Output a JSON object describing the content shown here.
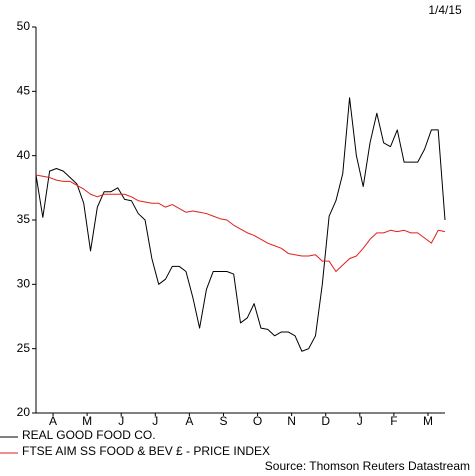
{
  "chart_data": {
    "type": "line",
    "date_label": "1/4/15",
    "source": "Source: Thomson Reuters Datastream",
    "x": [
      0,
      0.2,
      0.4,
      0.6,
      0.8,
      1,
      1.2,
      1.4,
      1.6,
      1.8,
      2,
      2.2,
      2.4,
      2.6,
      2.8,
      3,
      3.2,
      3.4,
      3.6,
      3.8,
      4,
      4.2,
      4.4,
      4.6,
      4.8,
      5,
      5.2,
      5.4,
      5.6,
      5.8,
      6,
      6.2,
      6.4,
      6.6,
      6.8,
      7,
      7.2,
      7.4,
      7.6,
      7.8,
      8,
      8.2,
      8.4,
      8.6,
      8.8,
      9,
      9.2,
      9.4,
      9.6,
      9.8,
      10,
      10.2,
      10.4,
      10.6,
      10.8,
      11,
      11.2,
      11.4,
      11.6,
      11.8,
      12
    ],
    "xlim": [
      0,
      12
    ],
    "xticks": [
      {
        "value": 0.5,
        "label": "A"
      },
      {
        "value": 1.5,
        "label": "M"
      },
      {
        "value": 2.5,
        "label": "J"
      },
      {
        "value": 3.5,
        "label": "J"
      },
      {
        "value": 4.5,
        "label": "A"
      },
      {
        "value": 5.5,
        "label": "S"
      },
      {
        "value": 6.5,
        "label": "O"
      },
      {
        "value": 7.5,
        "label": "N"
      },
      {
        "value": 8.5,
        "label": "D"
      },
      {
        "value": 9.5,
        "label": "J"
      },
      {
        "value": 10.5,
        "label": "F"
      },
      {
        "value": 11.5,
        "label": "M"
      }
    ],
    "ylim": [
      20,
      50
    ],
    "yticks": [
      20,
      25,
      30,
      35,
      40,
      45,
      50
    ],
    "grid": false,
    "series": [
      {
        "name": "REAL GOOD FOOD CO.",
        "color": "#000000",
        "values": [
          38.5,
          35.2,
          38.8,
          39,
          38.8,
          38.3,
          37.8,
          36.3,
          32.6,
          36,
          37.2,
          37.2,
          37.5,
          36.6,
          36.5,
          35.5,
          35,
          32,
          30,
          30.4,
          31.4,
          31.4,
          31,
          29,
          26.6,
          29.6,
          31,
          31,
          31,
          30.8,
          27,
          27.4,
          28.5,
          26.6,
          26.5,
          26,
          26.3,
          26.3,
          26,
          24.8,
          25,
          26,
          30,
          35.3,
          36.5,
          38.6,
          44.5,
          40,
          37.6,
          41,
          43.3,
          41,
          40.7,
          42,
          39.5,
          39.5,
          39.5,
          40.5,
          42,
          42,
          35
        ]
      },
      {
        "name": "FTSE AIM SS FOOD & BEV £ - PRICE INDEX",
        "color": "#e0201c",
        "values": [
          38.5,
          38.4,
          38.3,
          38.1,
          38,
          38,
          37.7,
          37.4,
          37,
          36.8,
          37,
          37,
          37,
          37,
          36.8,
          36.5,
          36.4,
          36.3,
          36.3,
          36,
          36.2,
          35.9,
          35.6,
          35.7,
          35.6,
          35.5,
          35.3,
          35.1,
          35,
          34.6,
          34.3,
          34,
          33.8,
          33.5,
          33.2,
          33,
          32.8,
          32.4,
          32.3,
          32.2,
          32.2,
          32.3,
          31.8,
          31.8,
          31,
          31.5,
          32,
          32.2,
          32.8,
          33.5,
          34,
          34,
          34.2,
          34.1,
          34.2,
          34,
          34,
          33.6,
          33.2,
          34.2,
          34.1
        ]
      }
    ]
  }
}
